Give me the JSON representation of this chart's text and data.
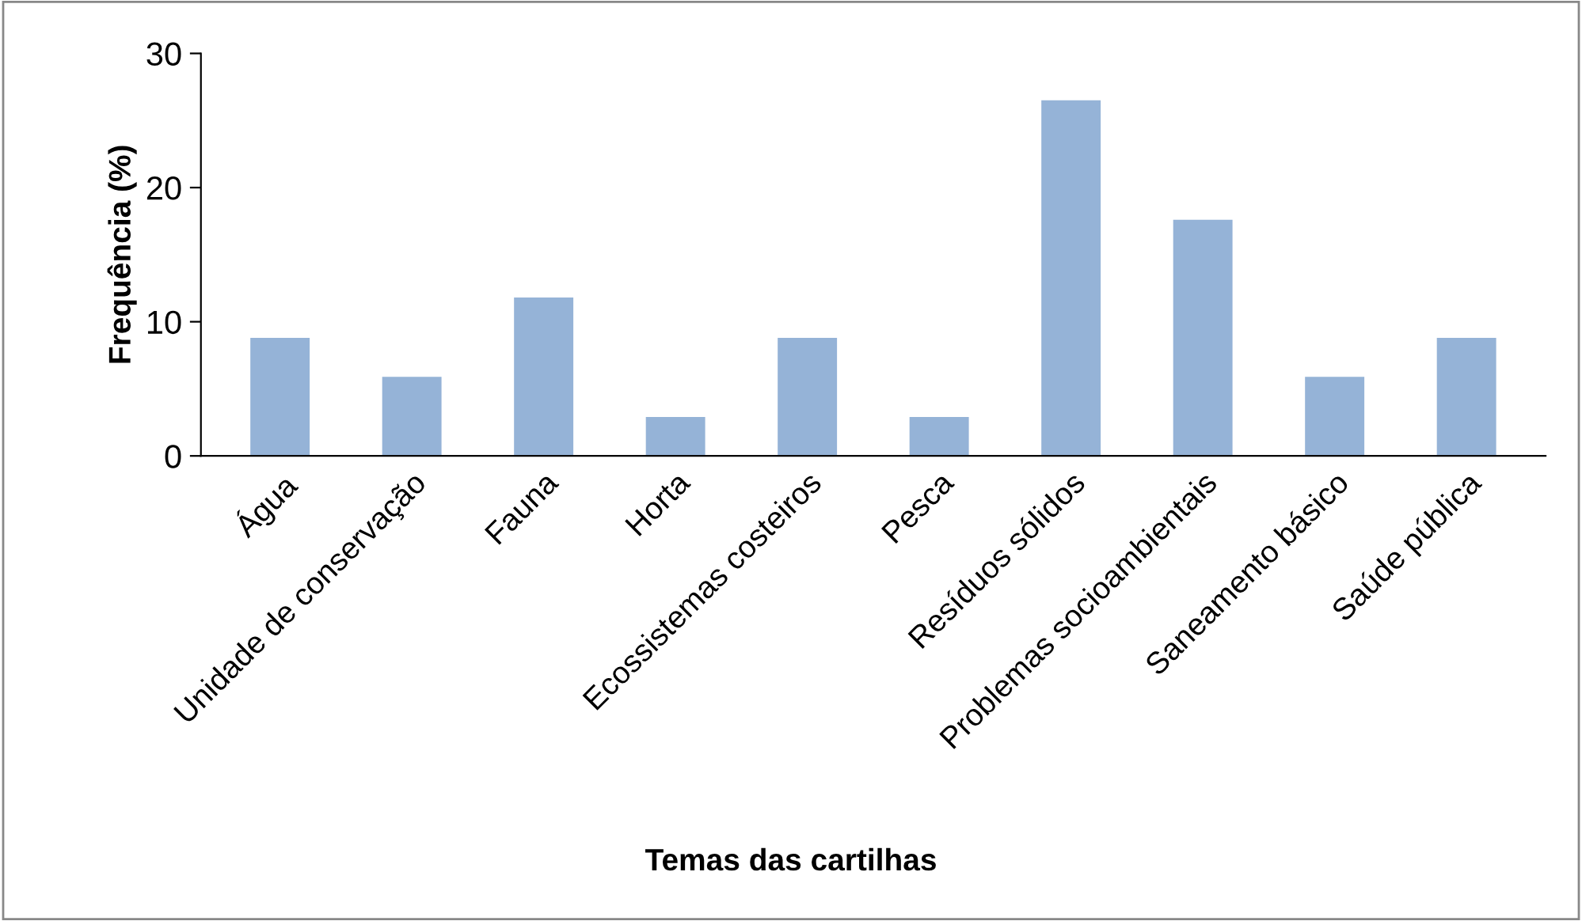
{
  "chart_data": {
    "type": "bar",
    "xlabel": "Temas das cartilhas",
    "ylabel": "Frequência (%)",
    "categories": [
      "Água",
      "Unidade de conservação",
      "Fauna",
      "Horta",
      "Ecossistemas costeiros",
      "Pesca",
      "Resíduos sólidos",
      "Problemas socioambientais",
      "Saneamento básico",
      "Saúde pública"
    ],
    "values": [
      8.8,
      5.9,
      11.8,
      2.9,
      8.8,
      2.9,
      26.5,
      17.6,
      5.9,
      8.8
    ],
    "color": "#95b3d7",
    "ylim": [
      0,
      30
    ],
    "yticks": [
      0,
      10,
      20,
      30
    ],
    "grid": false
  }
}
